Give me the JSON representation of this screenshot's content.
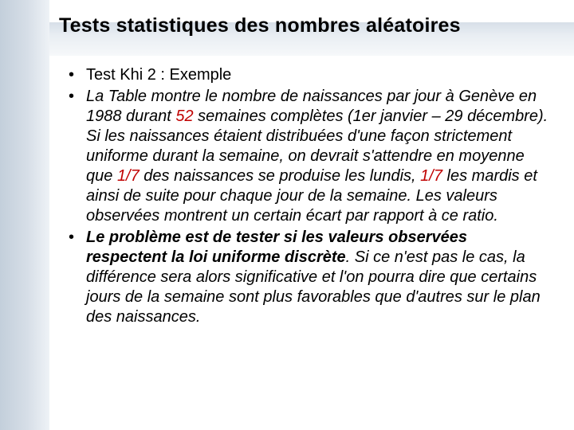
{
  "slide": {
    "title": "Tests statistiques des nombres aléatoires",
    "background_color": "#ffffff",
    "sidebar_gradient": [
      "#c3cfdb",
      "#d6dee7",
      "#eef2f6"
    ],
    "header_gradient": [
      "#d7dfe8",
      "#e9eef3",
      "#f6f8fa"
    ],
    "title_color": "#000000",
    "title_fontsize": 25,
    "bullets": [
      {
        "runs": [
          {
            "text": "Test Khi 2 : Exemple",
            "style": "normal"
          }
        ]
      },
      {
        "runs": [
          {
            "text": "La Table montre le nombre de naissances par jour à Genève en 1988 durant ",
            "style": "italic"
          },
          {
            "text": "52",
            "style": "italic highlight"
          },
          {
            "text": " semaines complètes (",
            "style": "italic"
          },
          {
            "text": "1er janvier – 29 décembre). Si les naissances étaient distribuées d'une façon strictement uniforme durant la semaine, on devrait s'attendre en moyenne que ",
            "style": "italic"
          },
          {
            "text": "1/7",
            "style": "italic highlight"
          },
          {
            "text": " des naissances se produise les lundis, ",
            "style": "italic"
          },
          {
            "text": "1/7",
            "style": "italic highlight"
          },
          {
            "text": " les mardis et ainsi de suite pour chaque jour de la semaine. Les valeurs observées montrent un certain écart par rapport à ce ratio.",
            "style": "italic"
          }
        ]
      },
      {
        "runs": [
          {
            "text": "Le problème est de tester si les valeurs observées respectent la loi uniforme discrète",
            "style": "italic bold"
          },
          {
            "text": ". Si ce n'est pas le cas, la différence sera alors significative et l'on pourra dire que certains jours de la semaine sont plus favorables que d'autres sur le plan des naissances.",
            "style": "italic"
          }
        ]
      }
    ],
    "body_fontsize": 20,
    "body_color": "#000000",
    "highlight_color": "#c00000"
  }
}
